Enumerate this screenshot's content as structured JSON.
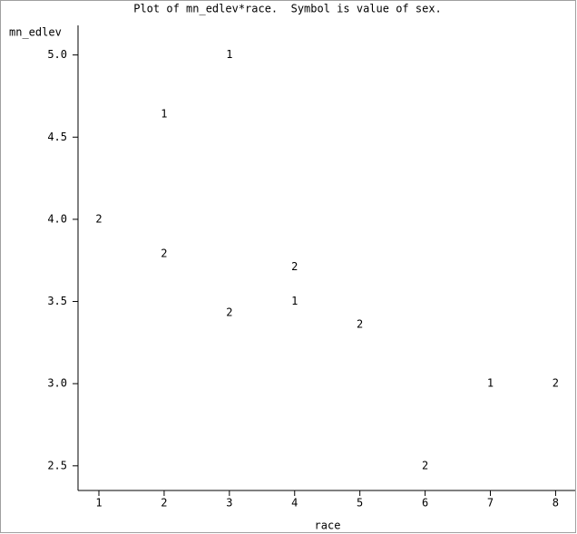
{
  "chart_data": {
    "type": "scatter",
    "title": "Plot of mn_edlev*race.  Symbol is value of sex.",
    "x_label": "race",
    "y_label": "mn_edlev",
    "color": "#000000",
    "xlim": [
      0.68,
      8.3
    ],
    "ylim": [
      2.35,
      5.18
    ],
    "xticks": [
      1,
      2,
      3,
      4,
      5,
      6,
      7,
      8
    ],
    "yticks": [
      {
        "value": 2.5,
        "label": "2.5"
      },
      {
        "value": 3.0,
        "label": "3.0"
      },
      {
        "value": 3.5,
        "label": "3.5"
      },
      {
        "value": 4.0,
        "label": "4.0"
      },
      {
        "value": 4.5,
        "label": "4.5"
      },
      {
        "value": 5.0,
        "label": "5.0"
      }
    ],
    "series": [
      {
        "name": "1",
        "x": [
          2,
          3,
          4,
          7
        ],
        "values": [
          4.64,
          5.0,
          3.5,
          3.0
        ]
      },
      {
        "name": "2",
        "x": [
          1,
          2,
          3,
          4,
          5,
          6,
          8
        ],
        "values": [
          4.0,
          3.79,
          3.43,
          3.71,
          3.36,
          2.5,
          3.0
        ]
      }
    ]
  }
}
